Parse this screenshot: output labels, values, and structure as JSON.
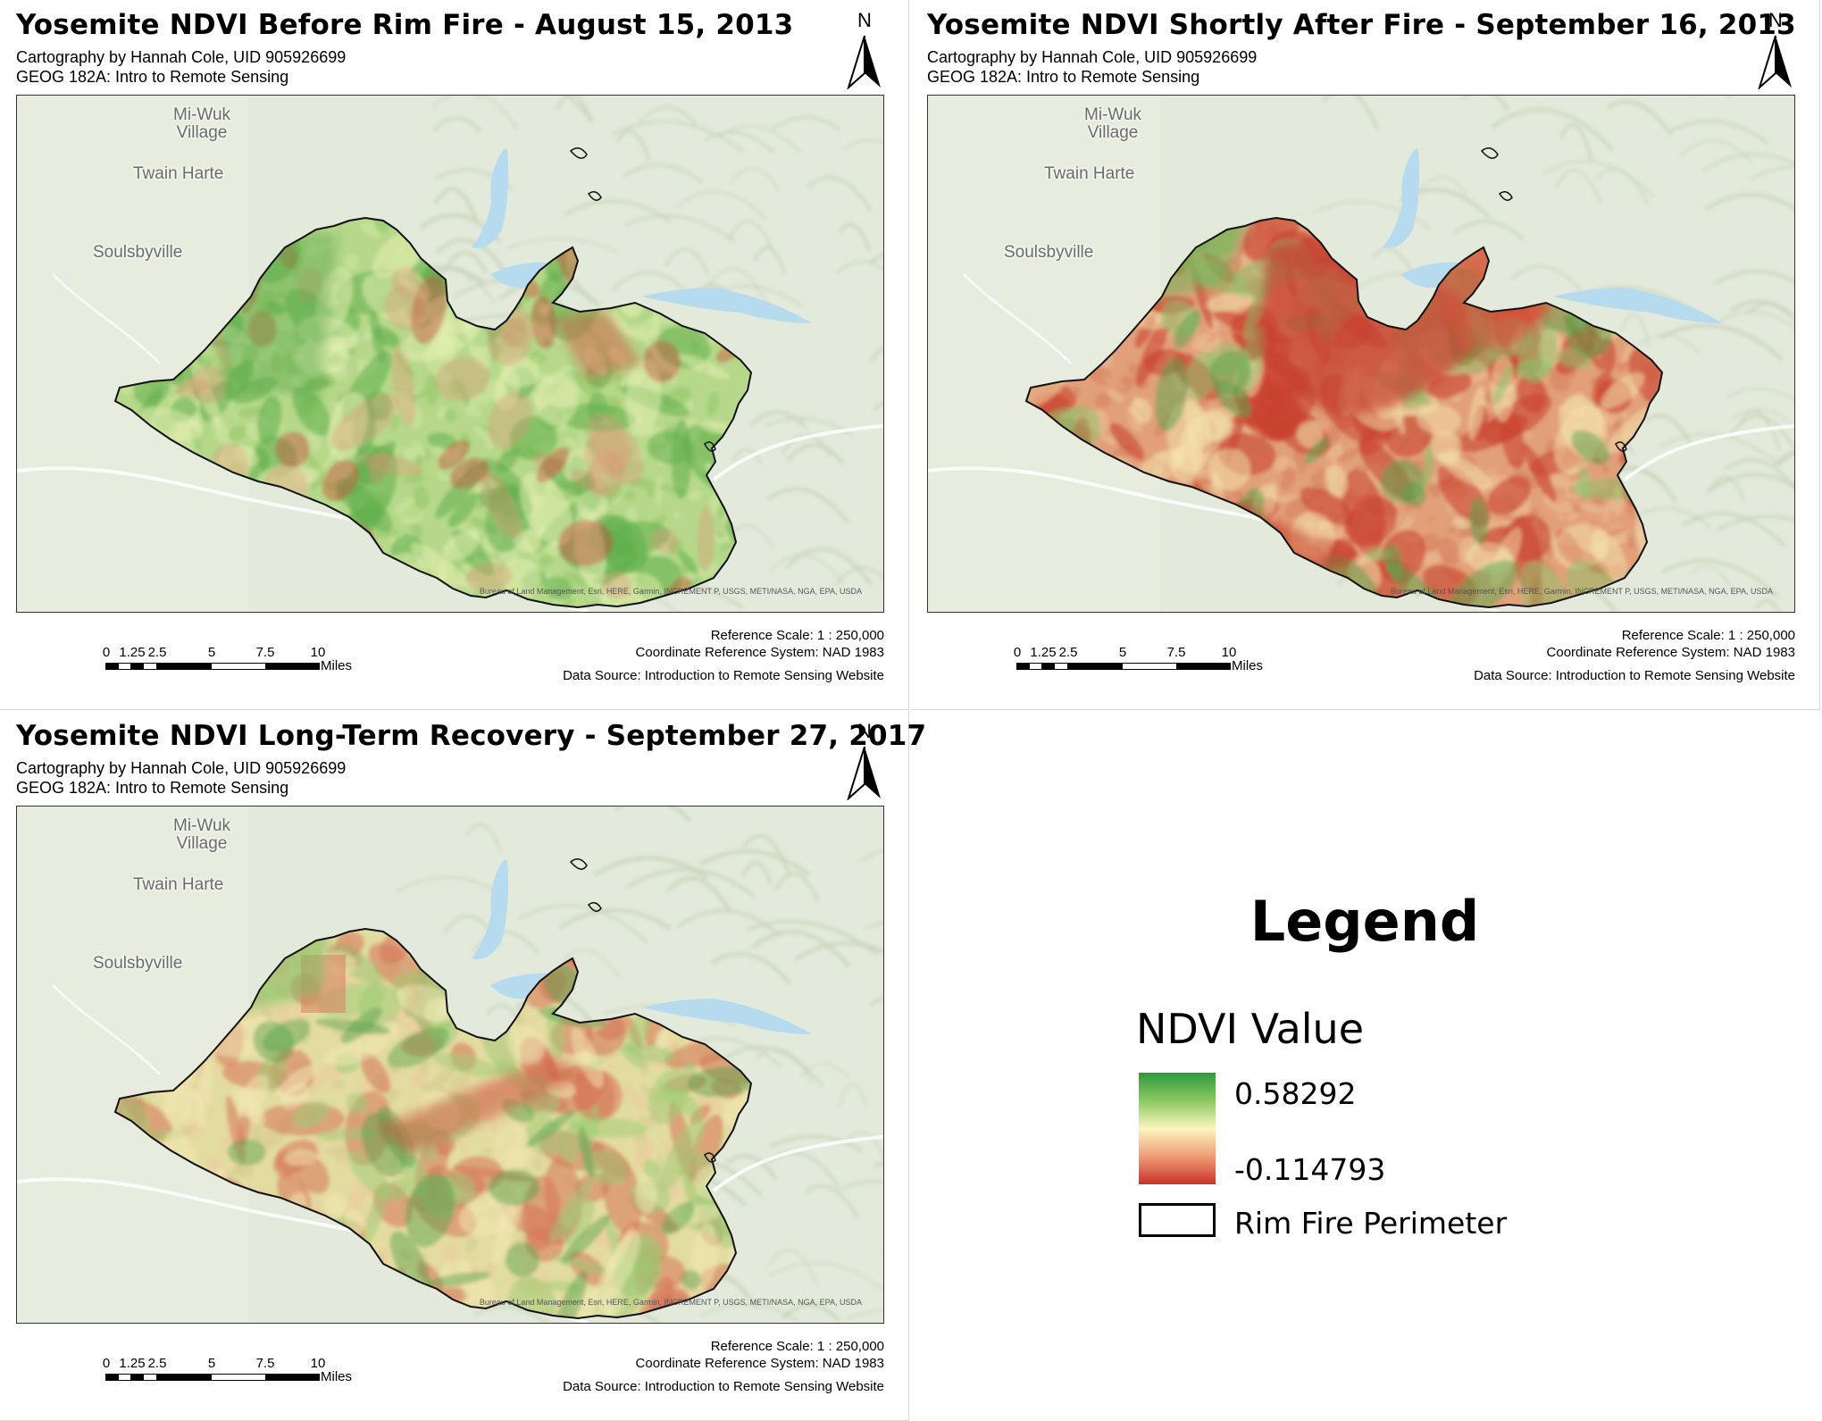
{
  "maps": [
    {
      "title": "Yosemite NDVI Before Rim Fire - August 15, 2013",
      "variant": "before",
      "credit_line": "Cartography by Hannah Cole, UID 905926699",
      "course_line": "GEOG 182A: Intro to Remote Sensing"
    },
    {
      "title": "Yosemite NDVI Shortly After Fire - September 16, 2013",
      "variant": "after",
      "credit_line": "Cartography by Hannah Cole, UID 905926699",
      "course_line": "GEOG 182A: Intro to Remote Sensing"
    },
    {
      "title": "Yosemite NDVI Long-Term Recovery - September 27, 2017",
      "variant": "recovery",
      "credit_line": "Cartography by Hannah Cole, UID 905926699",
      "course_line": "GEOG 182A: Intro to Remote Sensing"
    }
  ],
  "north_label": "N",
  "places": {
    "miwuk": "Mi-Wuk Village",
    "twain": "Twain Harte",
    "souls": "Soulsbyville"
  },
  "basemap_credit": "Bureau of Land Management, Esri, HERE, Garmin, INCREMENT P, USGS, METI/NASA, NGA, EPA, USDA",
  "scale_ticks": [
    "0",
    "1.25",
    "2.5",
    "5",
    "7.5",
    "10"
  ],
  "scale_units": "Miles",
  "reference_scale": "Reference Scale:  1 : 250,000",
  "crs": "Coordinate Reference System: NAD 1983",
  "data_source": "Data Source: Introduction to Remote Sensing Website",
  "legend": {
    "title": "Legend",
    "field": "NDVI Value",
    "high": "0.58292",
    "low": "-0.114793",
    "perimeter": "Rim Fire Perimeter",
    "ramp_colors": [
      "#2e9a3c",
      "#8cc864",
      "#fbf6bd",
      "#ef9d76",
      "#c9322a"
    ]
  },
  "colors": {
    "basemap": "#e4eadb",
    "water": "#b7dbee",
    "perimeter": "#111111"
  }
}
